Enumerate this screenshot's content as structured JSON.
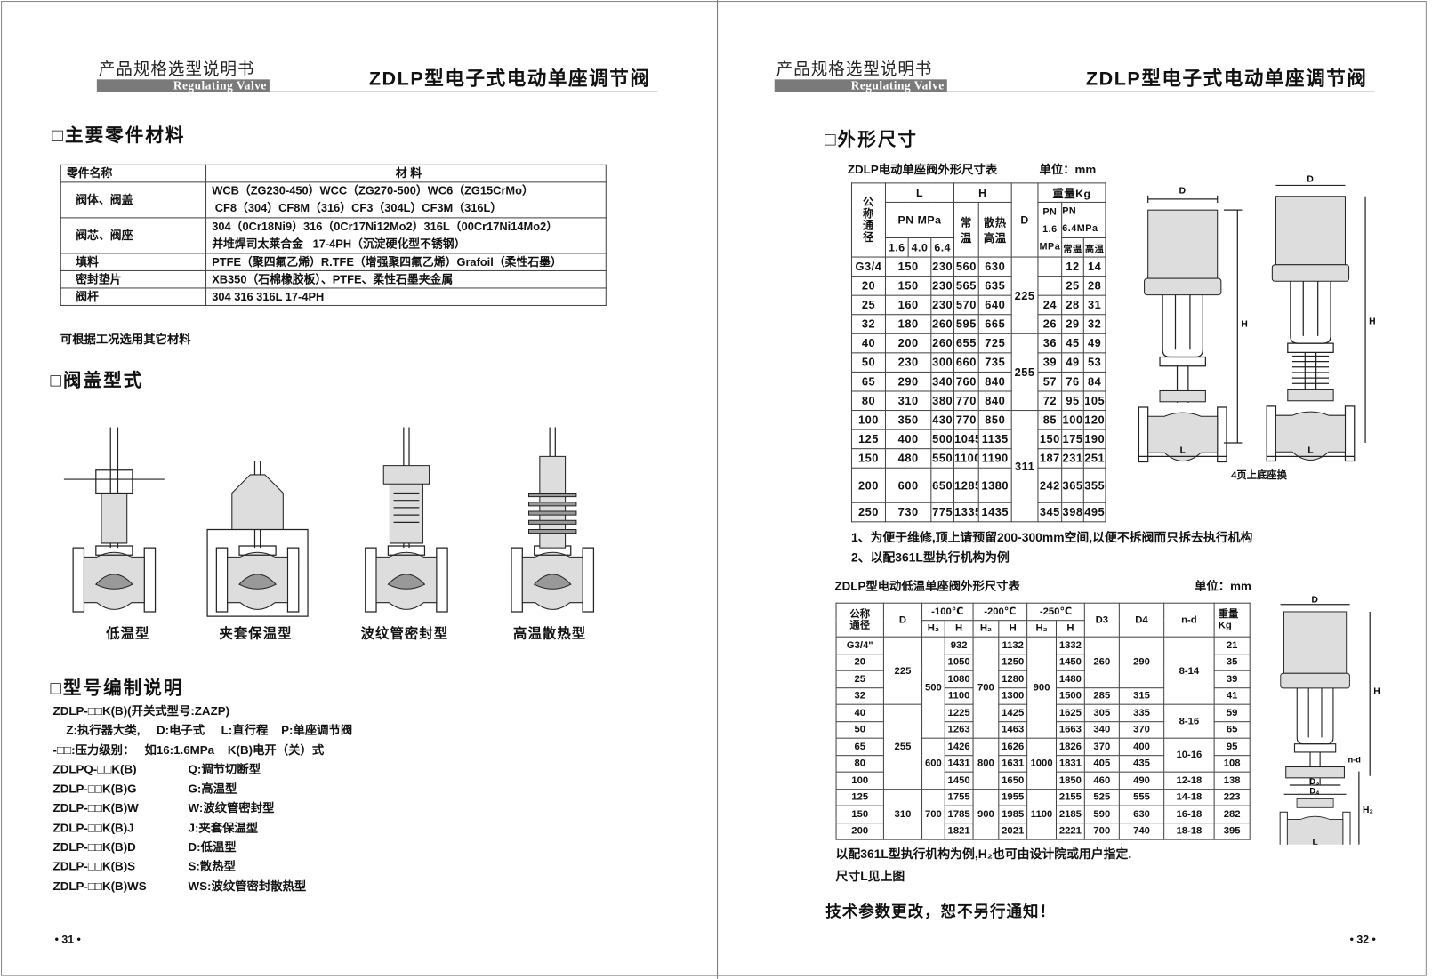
{
  "header": {
    "series_cn": "产品规格选型说明书",
    "series_en": "Regulating  Valve",
    "title": "ZDLP型电子式电动单座调节阀"
  },
  "left": {
    "materials": {
      "heading": "□主要零件材料",
      "columns": [
        "零件名称",
        "材 料"
      ],
      "rows": [
        {
          "part": "阀体、阀盖",
          "lines": [
            "WCB（ZG230-450）WCC（ZG270-500）WC6（ZG15CrMo）",
            " CF8（304）CF8M（316）CF3（304L）CF3M（316L）"
          ]
        },
        {
          "part": "阀芯、阀座",
          "lines": [
            "304（0Cr18Ni9）316（0Cr17Ni12Mo2）316L（00Cr17Ni14Mo2）",
            "并堆焊司太莱合金   17-4PH（沉淀硬化型不锈钢）"
          ]
        },
        {
          "part": "填料",
          "lines": [
            "PTFE（聚四氟乙烯）R.TFE（增强聚四氟乙烯）Grafoil（柔性石墨）"
          ]
        },
        {
          "part": "密封垫片",
          "lines": [
            "XB350（石棉橡胶板）、PTFE、柔性石墨夹金属"
          ]
        },
        {
          "part": "阀杆",
          "lines": [
            "304 316 316L 17-4PH"
          ]
        }
      ],
      "note": "可根据工况选用其它材料"
    },
    "bonnet": {
      "heading": "□阀盖型式",
      "types": [
        "低温型",
        "夹套保温型",
        "波纹管密封型",
        "高温散热型"
      ]
    },
    "model": {
      "heading": "□型号编制说明",
      "lines": [
        {
          "a": "ZDLP-□□K(B)(开关式型号:ZAZP)",
          "b": ""
        },
        {
          "a": "    Z:执行器大类,     D:电子式     L:直行程    P:单座调节阀",
          "b": ""
        },
        {
          "a": "-□□:压力级别：   如16:1.6MPa    K(B)电开（关）式",
          "b": ""
        },
        {
          "a": "ZDLPQ-□□K(B)",
          "b": "Q:调节切断型"
        },
        {
          "a": "ZDLP-□□K(B)G",
          "b": "G:高温型"
        },
        {
          "a": "ZDLP-□□K(B)W",
          "b": "W:波纹管密封型"
        },
        {
          "a": "ZDLP-□□K(B)J",
          "b": "J:夹套保温型"
        },
        {
          "a": "ZDLP-□□K(B)D",
          "b": "D:低温型"
        },
        {
          "a": "ZDLP-□□K(B)S",
          "b": "S:散热型"
        },
        {
          "a": "ZDLP-□□K(B)WS",
          "b": "WS:波纹管密封散热型"
        }
      ]
    },
    "page_number": "• 31 •"
  },
  "right": {
    "heading": "□外形尺寸",
    "table1": {
      "title": "ZDLP电动单座阀外形尺寸表",
      "unit": "单位：mm",
      "head": {
        "dn": "公称通径",
        "L": "L",
        "H": "H",
        "D": "D",
        "weight": "重量Kg",
        "pn_mpa": "PN MPa",
        "h_normal": "常温",
        "h_hot": "散热高温",
        "pn16": "PN 1.6 MPa",
        "pn64": "PN 6.4MPa",
        "l16": "1.6",
        "l40": "4.0",
        "l64": "6.4",
        "w_normal": "常温",
        "w_hot": "高温"
      },
      "rows": [
        [
          "G3/4",
          "150",
          "230",
          "560",
          "630",
          "225",
          "",
          "12",
          "14"
        ],
        [
          "20",
          "150",
          "230",
          "565",
          "635",
          null,
          "",
          "25",
          "28"
        ],
        [
          "25",
          "160",
          "230",
          "570",
          "640",
          null,
          "24",
          "28",
          "31"
        ],
        [
          "32",
          "180",
          "260",
          "595",
          "665",
          null,
          "26",
          "29",
          "32"
        ],
        [
          "40",
          "200",
          "260",
          "655",
          "725",
          "255",
          "36",
          "45",
          "49"
        ],
        [
          "50",
          "230",
          "300",
          "660",
          "735",
          null,
          "39",
          "49",
          "53"
        ],
        [
          "65",
          "290",
          "340",
          "760",
          "840",
          null,
          "57",
          "76",
          "84"
        ],
        [
          "80",
          "310",
          "380",
          "770",
          "840",
          null,
          "72",
          "95",
          "105"
        ],
        [
          "100",
          "350",
          "430",
          "770",
          "850",
          "311",
          "85",
          "100",
          "120"
        ],
        [
          "125",
          "400",
          "500",
          "1045",
          "1135",
          null,
          "150",
          "175",
          "190"
        ],
        [
          "150",
          "480",
          "550",
          "1100",
          "1190",
          null,
          "187",
          "231",
          "251"
        ],
        [
          "200",
          "600",
          "650",
          "1285",
          "1380",
          null,
          "242",
          "365",
          "355"
        ],
        [
          "250",
          "730",
          "775",
          "1335",
          "1435",
          null,
          "345",
          "398",
          "495"
        ]
      ],
      "figure_caption": "4页上底座换",
      "notes": [
        "1、为便于维修,顶上请预留200-300mm空间,以便不拆阀而只拆去执行机构",
        "2、以配361L型执行机构为例"
      ]
    },
    "table2": {
      "title": "ZDLP型电动低温单座阀外形尺寸表",
      "unit": "单位：mm",
      "head": {
        "dn": "公称通径",
        "D": "D",
        "t100": "-100℃",
        "t200": "-200℃",
        "t250": "-250℃",
        "h2": "H₂",
        "h": "H",
        "D3": "D3",
        "D4": "D4",
        "nd": "n-d",
        "weight": "重量Kg"
      },
      "rows": [
        [
          "G3/4\"",
          "225",
          "500",
          "932",
          "700",
          "1132",
          "900",
          "1332",
          "260",
          "290",
          "8-14",
          "21"
        ],
        [
          "20",
          null,
          null,
          "1050",
          null,
          "1250",
          null,
          "1450",
          null,
          null,
          null,
          "35"
        ],
        [
          "25",
          null,
          null,
          "1080",
          null,
          "1280",
          null,
          "1480",
          null,
          null,
          null,
          "39"
        ],
        [
          "32",
          null,
          null,
          "1100",
          null,
          "1300",
          null,
          "1500",
          "285",
          "315",
          null,
          "41"
        ],
        [
          "40",
          "255",
          null,
          "1225",
          null,
          "1425",
          null,
          "1625",
          "305",
          "335",
          "8-16",
          "59"
        ],
        [
          "50",
          null,
          null,
          "1263",
          null,
          "1463",
          null,
          "1663",
          "340",
          "370",
          null,
          "65"
        ],
        [
          "65",
          null,
          "600",
          "1426",
          "800",
          "1626",
          "1000",
          "1826",
          "370",
          "400",
          "10-16",
          "95"
        ],
        [
          "80",
          null,
          null,
          "1431",
          null,
          "1631",
          null,
          "1831",
          "405",
          "435",
          null,
          "108"
        ],
        [
          "100",
          null,
          null,
          "1450",
          null,
          "1650",
          null,
          "1850",
          "460",
          "490",
          "12-18",
          "138"
        ],
        [
          "125",
          "310",
          "700",
          "1755",
          "900",
          "1955",
          "1100",
          "2155",
          "525",
          "555",
          "14-18",
          "223"
        ],
        [
          "150",
          null,
          null,
          "1785",
          null,
          "1985",
          null,
          "2185",
          "590",
          "630",
          "16-18",
          "282"
        ],
        [
          "200",
          null,
          null,
          "1821",
          null,
          "2021",
          null,
          "2221",
          "700",
          "740",
          "18-18",
          "395"
        ]
      ],
      "notes": [
        "以配361L型执行机构为例,H₂也可由设计院或用户指定.",
        "尺寸L见上图"
      ]
    },
    "figure_labels": {
      "D": "D",
      "H": "H",
      "L": "L",
      "H2": "H₂",
      "D3": "D₃",
      "D4": "D₄",
      "nd": "n-d"
    },
    "footer_notice": "技术参数更改，恕不另行通知！",
    "page_number": "• 32 •"
  }
}
